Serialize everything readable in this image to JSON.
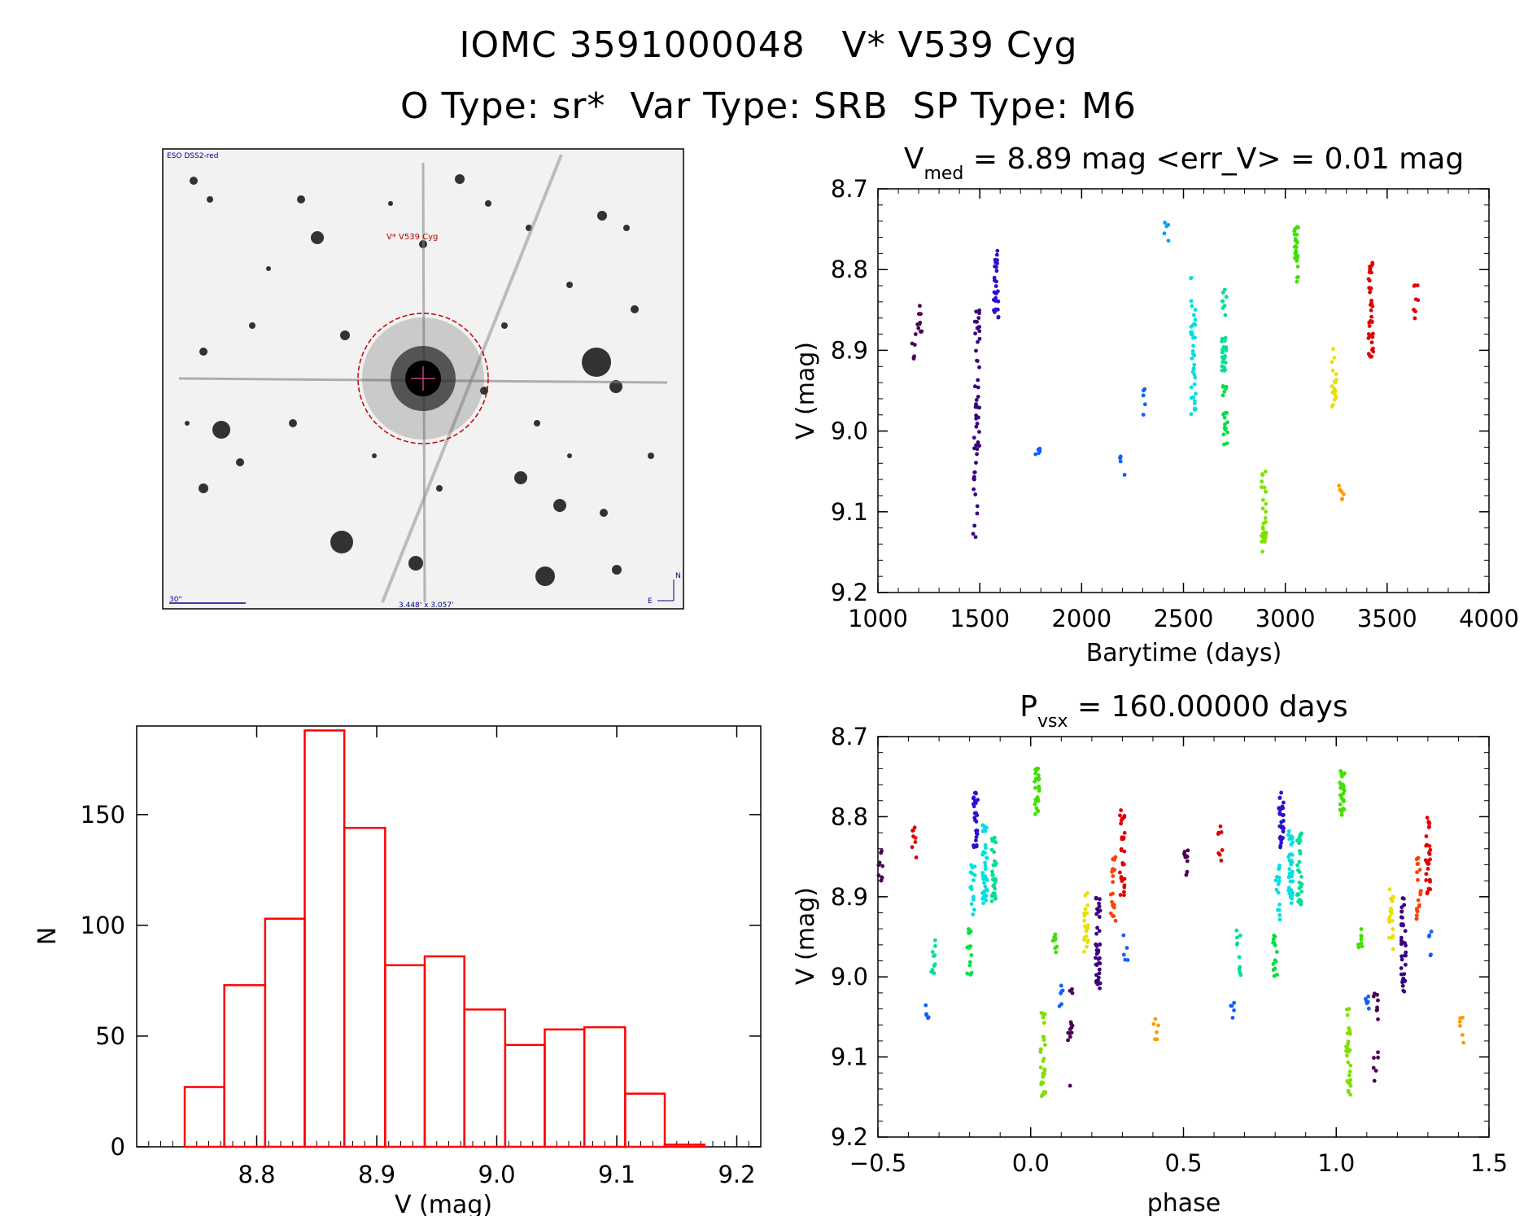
{
  "header": {
    "line1": "IOMC 3591000048   V* V539 Cyg",
    "line2": "O Type: sr*  Var Type: SRB  SP Type: M6"
  },
  "finder_chart": {
    "survey_label": "ESO DSS2-red",
    "star_label": "V* V539 Cyg",
    "scale_label": "30\"",
    "fov_label": "3.448' x 3.057'",
    "compass_north": "N",
    "compass_east": "E"
  },
  "colors": {
    "histogram": "#ff0000",
    "palette": [
      "#4b0055",
      "#3a0080",
      "#2a10d0",
      "#1060ff",
      "#00a0ff",
      "#00e0e0",
      "#00e090",
      "#00e040",
      "#40e000",
      "#80e000",
      "#e8e000",
      "#ff9a00",
      "#ff4000",
      "#e00000"
    ]
  },
  "chart_data": [
    {
      "id": "lightcurve",
      "type": "scatter",
      "title_prefix": "V",
      "title_sub": "med",
      "title_rest": " = 8.89 mag <err_V> = 0.01 mag",
      "xlabel": "Barytime (days)",
      "ylabel": "V (mag)",
      "xlim": [
        1000,
        4000
      ],
      "ylim": [
        9.2,
        8.7
      ],
      "y_inverted": true,
      "xticks": [
        1000,
        1500,
        2000,
        2500,
        3000,
        3500,
        4000
      ],
      "xtick_labels": [
        "1000",
        "1500",
        "2000",
        "2500",
        "3000",
        "3500",
        "4000"
      ],
      "yticks": [
        8.7,
        8.8,
        8.9,
        9.0,
        9.1,
        9.2
      ],
      "ytick_labels": [
        "8.7",
        "8.8",
        "8.9",
        "9.0",
        "9.1",
        "9.2"
      ],
      "grid": false,
      "groups": [
        {
          "t": 1175,
          "ymin": 8.88,
          "ymax": 8.92,
          "n": 6,
          "color": 0
        },
        {
          "t": 1205,
          "ymin": 8.84,
          "ymax": 8.88,
          "n": 10,
          "color": 0
        },
        {
          "t": 1478,
          "ymin": 9.0,
          "ymax": 9.14,
          "n": 14,
          "color": 1
        },
        {
          "t": 1488,
          "ymin": 8.85,
          "ymax": 9.04,
          "n": 40,
          "color": 1
        },
        {
          "t": 1580,
          "ymin": 8.77,
          "ymax": 8.86,
          "n": 30,
          "color": 2
        },
        {
          "t": 1785,
          "ymin": 9.0,
          "ymax": 9.03,
          "n": 5,
          "color": 3
        },
        {
          "t": 2200,
          "ymin": 9.03,
          "ymax": 9.07,
          "n": 5,
          "color": 3
        },
        {
          "t": 2305,
          "ymin": 8.94,
          "ymax": 8.98,
          "n": 5,
          "color": 3
        },
        {
          "t": 2415,
          "ymin": 8.74,
          "ymax": 8.77,
          "n": 5,
          "color": 4
        },
        {
          "t": 2548,
          "ymin": 8.81,
          "ymax": 8.98,
          "n": 40,
          "color": 5
        },
        {
          "t": 2700,
          "ymin": 8.82,
          "ymax": 8.93,
          "n": 30,
          "color": 6
        },
        {
          "t": 2705,
          "ymin": 8.94,
          "ymax": 9.02,
          "n": 20,
          "color": 7
        },
        {
          "t": 2895,
          "ymin": 9.05,
          "ymax": 9.15,
          "n": 30,
          "color": 9
        },
        {
          "t": 3055,
          "ymin": 8.74,
          "ymax": 8.82,
          "n": 25,
          "color": 8
        },
        {
          "t": 3240,
          "ymin": 8.89,
          "ymax": 8.97,
          "n": 20,
          "color": 10
        },
        {
          "t": 3275,
          "ymin": 9.05,
          "ymax": 9.09,
          "n": 6,
          "color": 11
        },
        {
          "t": 3420,
          "ymin": 8.79,
          "ymax": 8.91,
          "n": 40,
          "color": 13
        },
        {
          "t": 3640,
          "ymin": 8.81,
          "ymax": 8.87,
          "n": 8,
          "color": 13
        }
      ]
    },
    {
      "id": "histogram",
      "type": "bar",
      "xlabel": "V (mag)",
      "ylabel": "N",
      "xlim": [
        8.7,
        9.22
      ],
      "ylim": [
        0,
        190
      ],
      "xticks": [
        8.8,
        8.9,
        9.0,
        9.1,
        9.2
      ],
      "xtick_labels": [
        "8.8",
        "8.9",
        "9.0",
        "9.1",
        "9.2"
      ],
      "yticks": [
        0,
        50,
        100,
        150
      ],
      "ytick_labels": [
        "0",
        "50",
        "100",
        "150"
      ],
      "bin_edges": [
        8.74,
        8.773,
        8.807,
        8.84,
        8.873,
        8.907,
        8.94,
        8.973,
        9.007,
        9.04,
        9.073,
        9.107,
        9.14,
        9.173
      ],
      "values": [
        27,
        73,
        103,
        188,
        144,
        82,
        86,
        62,
        46,
        53,
        54,
        24,
        1
      ]
    },
    {
      "id": "phased",
      "type": "scatter",
      "title_prefix": "P",
      "title_sub": "vsx",
      "title_rest": " = 160.00000 days",
      "xlabel": "phase",
      "ylabel": "V (mag)",
      "xlim": [
        -0.5,
        1.5
      ],
      "ylim": [
        9.2,
        8.7
      ],
      "y_inverted": true,
      "xticks": [
        -0.5,
        0.0,
        0.5,
        1.0,
        1.5
      ],
      "xtick_labels": [
        "−0.5",
        "0.0",
        "0.5",
        "1.0",
        "1.5"
      ],
      "yticks": [
        8.7,
        8.8,
        8.9,
        9.0,
        9.1,
        9.2
      ],
      "ytick_labels": [
        "8.7",
        "8.8",
        "8.9",
        "9.0",
        "9.1",
        "9.2"
      ],
      "grid": false,
      "groups": [
        {
          "p": -0.49,
          "ymin": 8.84,
          "ymax": 8.88,
          "n": 10,
          "color": 0
        },
        {
          "p": -0.38,
          "ymin": 8.81,
          "ymax": 8.87,
          "n": 8,
          "color": 13
        },
        {
          "p": -0.34,
          "ymin": 9.03,
          "ymax": 9.06,
          "n": 5,
          "color": 3
        },
        {
          "p": -0.32,
          "ymin": 8.94,
          "ymax": 9.0,
          "n": 10,
          "color": 6
        },
        {
          "p": -0.2,
          "ymin": 8.94,
          "ymax": 9.0,
          "n": 15,
          "color": 7
        },
        {
          "p": -0.19,
          "ymin": 8.86,
          "ymax": 8.93,
          "n": 15,
          "color": 5
        },
        {
          "p": -0.18,
          "ymin": 8.77,
          "ymax": 8.84,
          "n": 30,
          "color": 2
        },
        {
          "p": -0.15,
          "ymin": 8.81,
          "ymax": 8.91,
          "n": 40,
          "color": 5
        },
        {
          "p": -0.12,
          "ymin": 8.82,
          "ymax": 8.91,
          "n": 30,
          "color": 6
        },
        {
          "p": 0.02,
          "ymin": 8.74,
          "ymax": 8.8,
          "n": 25,
          "color": 8
        },
        {
          "p": 0.04,
          "ymin": 9.04,
          "ymax": 9.15,
          "n": 30,
          "color": 9
        },
        {
          "p": 0.08,
          "ymin": 8.94,
          "ymax": 8.97,
          "n": 8,
          "color": 8
        },
        {
          "p": 0.1,
          "ymin": 9.01,
          "ymax": 9.04,
          "n": 6,
          "color": 3
        },
        {
          "p": 0.13,
          "ymin": 9.0,
          "ymax": 9.14,
          "n": 14,
          "color": 0
        },
        {
          "p": 0.18,
          "ymin": 8.89,
          "ymax": 8.97,
          "n": 20,
          "color": 10
        },
        {
          "p": 0.22,
          "ymin": 8.9,
          "ymax": 9.02,
          "n": 40,
          "color": 1
        },
        {
          "p": 0.27,
          "ymin": 8.85,
          "ymax": 8.93,
          "n": 20,
          "color": 12
        },
        {
          "p": 0.3,
          "ymin": 8.79,
          "ymax": 8.9,
          "n": 30,
          "color": 13
        },
        {
          "p": 0.31,
          "ymin": 8.94,
          "ymax": 8.98,
          "n": 5,
          "color": 3
        },
        {
          "p": 0.41,
          "ymin": 9.05,
          "ymax": 9.09,
          "n": 6,
          "color": 11
        },
        {
          "p": 0.51,
          "ymin": 8.84,
          "ymax": 8.88,
          "n": 10,
          "color": 0
        },
        {
          "p": 0.62,
          "ymin": 8.81,
          "ymax": 8.87,
          "n": 8,
          "color": 13
        },
        {
          "p": 0.66,
          "ymin": 9.03,
          "ymax": 9.06,
          "n": 5,
          "color": 3
        },
        {
          "p": 0.68,
          "ymin": 8.94,
          "ymax": 9.0,
          "n": 10,
          "color": 6
        },
        {
          "p": 0.8,
          "ymin": 8.94,
          "ymax": 9.0,
          "n": 15,
          "color": 7
        },
        {
          "p": 0.81,
          "ymin": 8.86,
          "ymax": 8.93,
          "n": 15,
          "color": 5
        },
        {
          "p": 0.82,
          "ymin": 8.77,
          "ymax": 8.84,
          "n": 30,
          "color": 2
        },
        {
          "p": 0.85,
          "ymin": 8.81,
          "ymax": 8.91,
          "n": 40,
          "color": 5
        },
        {
          "p": 0.88,
          "ymin": 8.82,
          "ymax": 8.91,
          "n": 30,
          "color": 6
        },
        {
          "p": 1.02,
          "ymin": 8.74,
          "ymax": 8.8,
          "n": 25,
          "color": 8
        },
        {
          "p": 1.04,
          "ymin": 9.04,
          "ymax": 9.15,
          "n": 30,
          "color": 9
        },
        {
          "p": 1.08,
          "ymin": 8.94,
          "ymax": 8.97,
          "n": 8,
          "color": 8
        },
        {
          "p": 1.1,
          "ymin": 9.01,
          "ymax": 9.04,
          "n": 6,
          "color": 3
        },
        {
          "p": 1.13,
          "ymin": 9.0,
          "ymax": 9.14,
          "n": 14,
          "color": 0
        },
        {
          "p": 1.18,
          "ymin": 8.89,
          "ymax": 8.97,
          "n": 20,
          "color": 10
        },
        {
          "p": 1.22,
          "ymin": 8.9,
          "ymax": 9.02,
          "n": 40,
          "color": 1
        },
        {
          "p": 1.27,
          "ymin": 8.85,
          "ymax": 8.93,
          "n": 20,
          "color": 12
        },
        {
          "p": 1.3,
          "ymin": 8.79,
          "ymax": 8.9,
          "n": 30,
          "color": 13
        },
        {
          "p": 1.31,
          "ymin": 8.94,
          "ymax": 8.98,
          "n": 5,
          "color": 3
        },
        {
          "p": 1.41,
          "ymin": 9.05,
          "ymax": 9.09,
          "n": 6,
          "color": 11
        }
      ]
    }
  ]
}
